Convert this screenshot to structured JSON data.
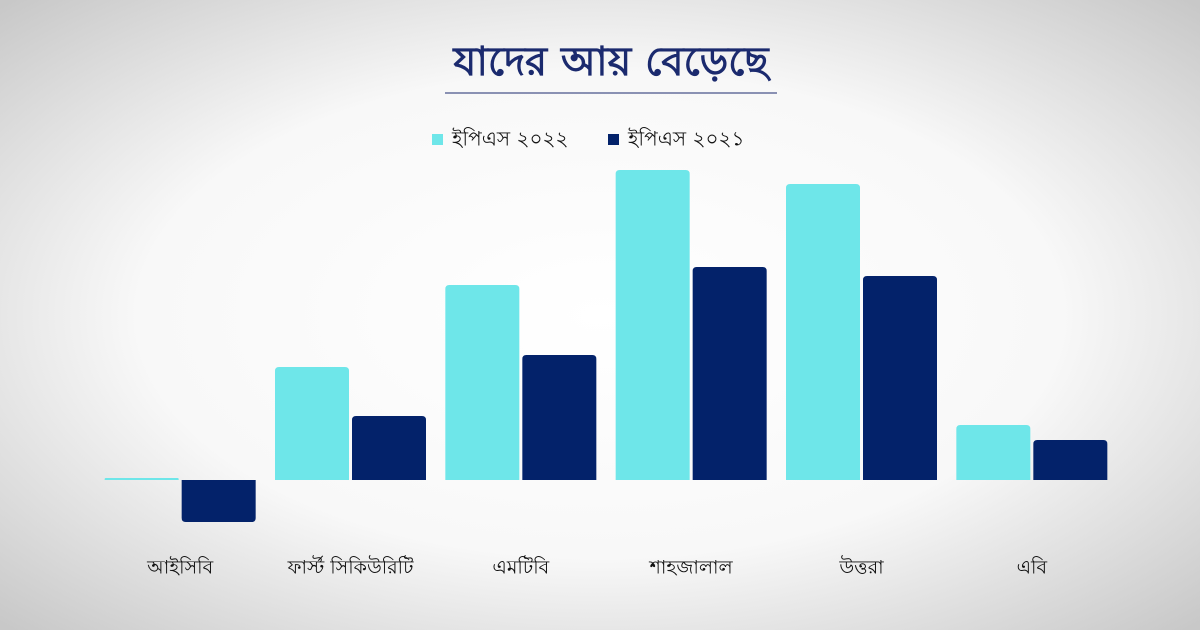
{
  "chart_data": {
    "type": "bar",
    "title": "যাদের আয় বেড়েছে",
    "categories": [
      "আইসিবি",
      "ফার্স্ট সিকিউরিটি",
      "এমটিবি",
      "শাহজালাল",
      "উত্তরা",
      "এবি"
    ],
    "series": [
      {
        "name": "ইপিএস ২০২২",
        "color": "#6ee6e9",
        "values": [
          2,
          113,
          195,
          310,
          296,
          55
        ]
      },
      {
        "name": "ইপিএস ২০২১",
        "color": "#03226a",
        "values": [
          -42,
          64,
          125,
          213,
          204,
          40
        ]
      }
    ],
    "ylim": [
      -50,
      310
    ],
    "legend": "top"
  }
}
